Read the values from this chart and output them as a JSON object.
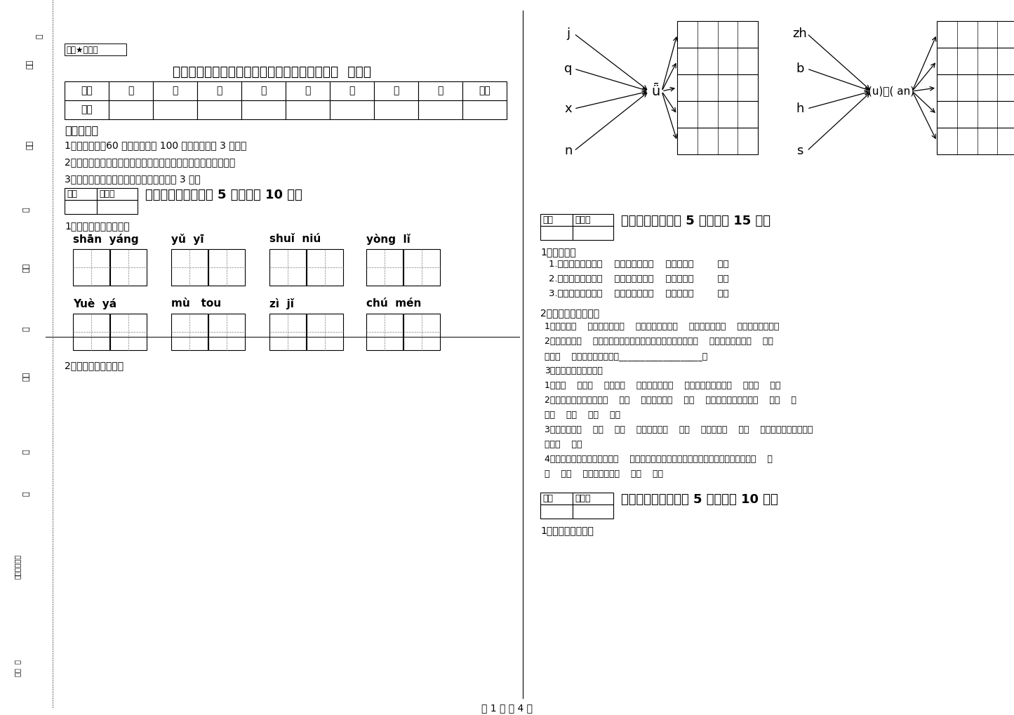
{
  "bg_color": "#ffffff",
  "title": "河南省重点小学一年级语文下学期过关检测试题  附解析",
  "secret_text": "绝密★启用前",
  "table_headers": [
    "题号",
    "一",
    "二",
    "三",
    "四",
    "五",
    "六",
    "七",
    "八",
    "总分"
  ],
  "table_row1": "得分",
  "exam_notes_title": "考试须知：",
  "exam_notes": [
    "1、考试时间：60 分钟，满分为 100 分（含卷面分 3 分）。",
    "2、请首先按要求在试卷的指定位置填写您的姓名、班级、学号。",
    "3、不要在试卷上乱写乱画，卷面不整洁才 3 分。"
  ],
  "section1_header": "一、拼音部分（每题 5 分，共计 10 分）",
  "section1_q1": "1、我会看拼音写词语。",
  "section1_pinyin_row1": [
    "shān  yáng",
    "yǔ  yī",
    "shuǐ  niú",
    "yòng  lǐ"
  ],
  "section1_pinyin_row2": [
    "Yuè  yá",
    "mù   tou",
    "zì  jǐ",
    "chú  mén"
  ],
  "section1_q2": "2、我会拼，我会写。",
  "section2_header": "二、填空题（每题 5 分，共计 15 分）",
  "section2_q1": "1、我会填。",
  "section2_q1_items": [
    "1.「几」共有几画（    ），第二画是（    ），组词（        ）。",
    "2.「牙」共有几画（    ），第二画是（    ），组词（        ）。",
    "3.「冬」共有几画（    ），第三画是（    ），组词（        ）。"
  ],
  "section2_q2": "2、我会按要求填写。",
  "section2_q2_items": [
    "1、哥哥在（    ）边，弟弟在（    ）边，哥哥跑得（    ），弟弟跑得（    ）（写出反义词）",
    "2、「园」是（    ）结构的字，按音序查字法要先查大写字母（    ），它的音节是（    ），",
    "共有（    ）笔，笔画顺序是：___________________。",
    "3、按照课文内容填空。",
    "1、牧（    ）骑（    ）牛，（    ）声振林樾。（    ）欲捕鸣蝉，忽然（    ）口（    ）。",
    "2、唱啊，跳啊，敬爱的（    ）（    ），亲爱的（    ）（    ），我们一起度过这（    ）（    ）",
    "的（    ）（    ）（    ）。",
    "3、我画了个（    ）（    ）（    ）的太阳，（    ）（    ）冬天。（    ）（    ）温暖着小朋友冻僵的",
    "手和（    ）。",
    "4、小鱼儿说：「荷叶是我的（    ）伞。」小鱼儿在荷叶底下笑嘻嘻地游来游去，摆起（    ）",
    "（    ）（    ）很美很美的（    ）（    ）。"
  ],
  "section3_header": "三、识字写字（每题 5 分，共计 10 分）",
  "section3_q1": "1、比一比再组词。",
  "left_phonics_left": [
    "j",
    "q",
    "x",
    "n"
  ],
  "left_phonics_center": "ǖ",
  "right_phonics_left": [
    "zh",
    "b",
    "h",
    "s"
  ],
  "right_phonics_center": "(u)－( an)",
  "score_label": "得分",
  "reviewer_label": "评卷人",
  "page_footer": "第 1 页 共 4 页"
}
